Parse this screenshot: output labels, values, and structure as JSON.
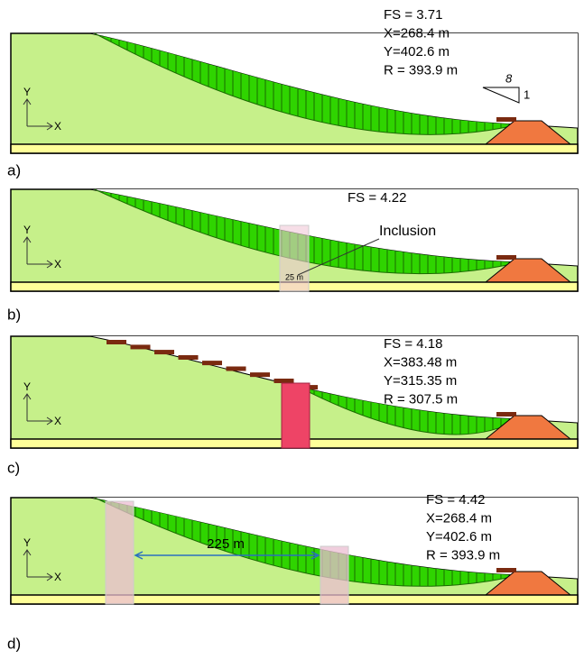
{
  "panels": [
    {
      "label": "a)",
      "axis_x": "X",
      "axis_y": "Y",
      "annotations": [
        "FS = 3.71",
        "X=268.4 m",
        "Y=402.6 m",
        "R = 393.9 m"
      ],
      "slope_ratio": {
        "run": "8",
        "rise": "1"
      }
    },
    {
      "label": "b)",
      "axis_x": "X",
      "axis_y": "Y",
      "annotations": [
        "FS = 4.22"
      ],
      "inclusion_label": "Inclusion",
      "width_label": "25 m"
    },
    {
      "label": "c)",
      "axis_x": "X",
      "axis_y": "Y",
      "annotations": [
        "FS = 4.18",
        "X=383.48 m",
        "Y=315.35 m",
        "R = 307.5 m"
      ]
    },
    {
      "label": "d)",
      "axis_x": "X",
      "axis_y": "Y",
      "annotations": [
        "FS = 4.42",
        "X=268.4 m",
        "Y=402.6 m",
        "R = 393.9 m"
      ],
      "spacing_label": "225 m"
    }
  ]
}
